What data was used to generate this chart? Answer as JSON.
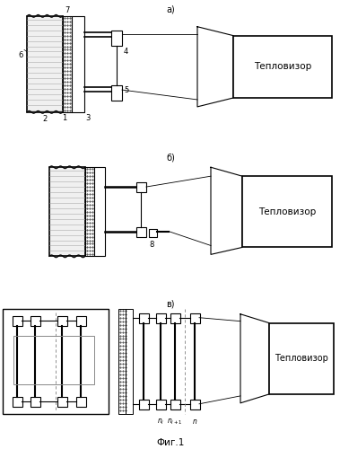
{
  "title": "Фиг.1",
  "bg_color": "#ffffff",
  "label_a": "а)",
  "label_b": "б)",
  "label_v": "в)",
  "teplovizor": "Тепловизор"
}
